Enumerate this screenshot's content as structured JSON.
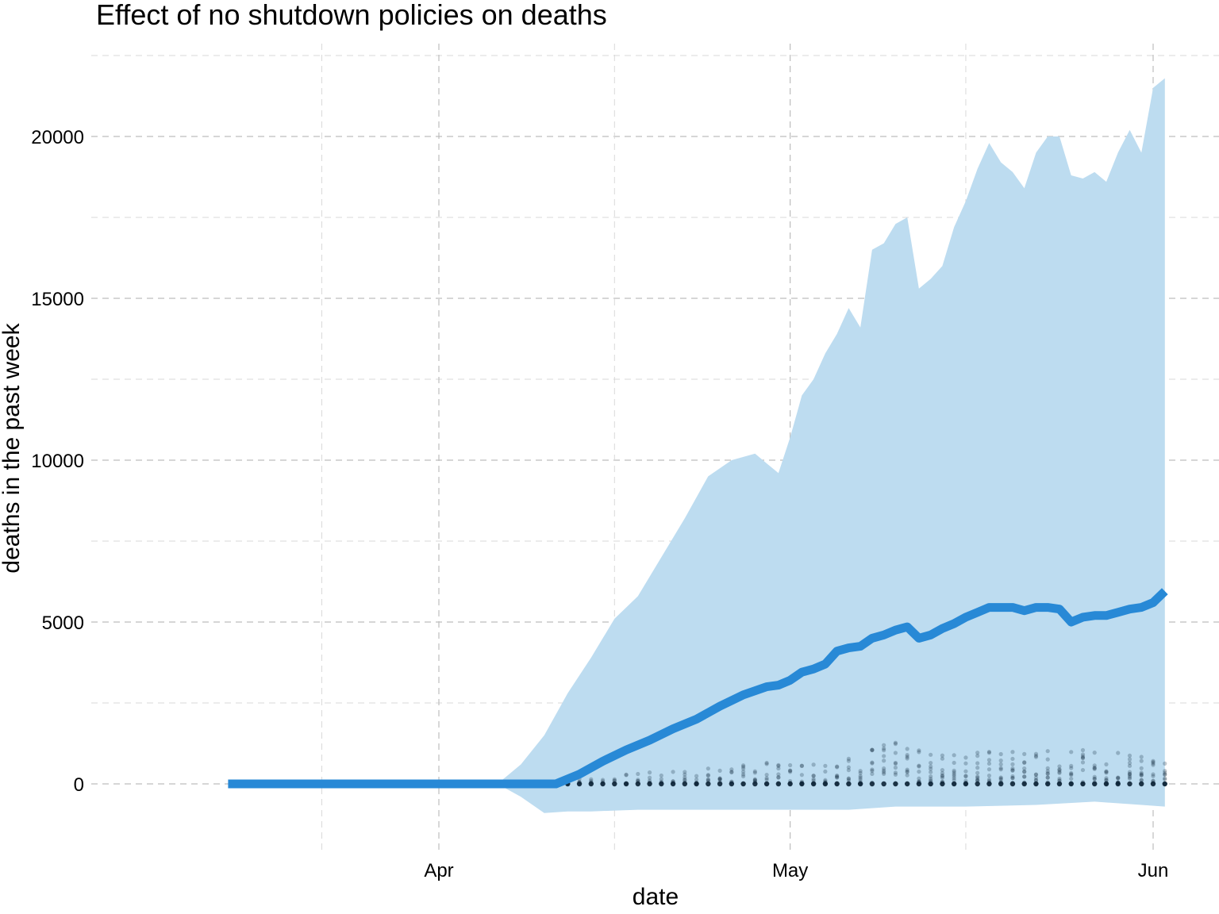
{
  "chart_data": {
    "type": "line",
    "title": "Effect of no shutdown policies on deaths",
    "xlabel": "date",
    "ylabel": "deaths in the past week",
    "x_range": [
      "2020-03-14",
      "2020-06-02"
    ],
    "x_ticks": [
      {
        "date": "2020-04-01",
        "label": "Apr"
      },
      {
        "date": "2020-05-01",
        "label": "May"
      },
      {
        "date": "2020-06-01",
        "label": "Jun"
      }
    ],
    "x_minor_ticks": [
      "2020-03-22",
      "2020-04-16",
      "2020-05-16"
    ],
    "y_ticks": [
      0,
      5000,
      10000,
      15000,
      20000
    ],
    "ylim": [
      -2000,
      22500
    ],
    "grid": true,
    "colors": {
      "line": "#2889d6",
      "band": "#bddcf0",
      "points": "#0d2436",
      "grid": "#bdbdbd"
    },
    "series": [
      {
        "name": "median",
        "type": "line",
        "dates": [
          "2020-03-14",
          "2020-04-06",
          "2020-04-11",
          "2020-04-13",
          "2020-04-15",
          "2020-04-17",
          "2020-04-19",
          "2020-04-21",
          "2020-04-23",
          "2020-04-25",
          "2020-04-27",
          "2020-04-29",
          "2020-04-30",
          "2020-05-01",
          "2020-05-02",
          "2020-05-03",
          "2020-05-04",
          "2020-05-05",
          "2020-05-06",
          "2020-05-07",
          "2020-05-08",
          "2020-05-09",
          "2020-05-10",
          "2020-05-11",
          "2020-05-12",
          "2020-05-13",
          "2020-05-14",
          "2020-05-15",
          "2020-05-16",
          "2020-05-17",
          "2020-05-18",
          "2020-05-19",
          "2020-05-20",
          "2020-05-21",
          "2020-05-22",
          "2020-05-23",
          "2020-05-24",
          "2020-05-25",
          "2020-05-26",
          "2020-05-27",
          "2020-05-28",
          "2020-05-29",
          "2020-05-30",
          "2020-05-31",
          "2020-06-01",
          "2020-06-02"
        ],
        "values": [
          0,
          0,
          0,
          300,
          700,
          1050,
          1350,
          1700,
          2000,
          2400,
          2750,
          3000,
          3050,
          3200,
          3450,
          3550,
          3700,
          4100,
          4200,
          4250,
          4500,
          4600,
          4750,
          4850,
          4500,
          4600,
          4800,
          4950,
          5150,
          5300,
          5450,
          5450,
          5450,
          5350,
          5450,
          5450,
          5400,
          5000,
          5150,
          5200,
          5200,
          5300,
          5400,
          5450,
          5600,
          5950
        ]
      },
      {
        "name": "upper bound",
        "type": "band-upper",
        "dates": [
          "2020-04-06",
          "2020-04-08",
          "2020-04-10",
          "2020-04-12",
          "2020-04-14",
          "2020-04-16",
          "2020-04-18",
          "2020-04-20",
          "2020-04-22",
          "2020-04-24",
          "2020-04-26",
          "2020-04-28",
          "2020-04-29",
          "2020-04-30",
          "2020-05-01",
          "2020-05-02",
          "2020-05-03",
          "2020-05-04",
          "2020-05-05",
          "2020-05-06",
          "2020-05-07",
          "2020-05-08",
          "2020-05-09",
          "2020-05-10",
          "2020-05-11",
          "2020-05-12",
          "2020-05-13",
          "2020-05-14",
          "2020-05-15",
          "2020-05-16",
          "2020-05-17",
          "2020-05-18",
          "2020-05-19",
          "2020-05-20",
          "2020-05-21",
          "2020-05-22",
          "2020-05-23",
          "2020-05-24",
          "2020-05-25",
          "2020-05-26",
          "2020-05-27",
          "2020-05-28",
          "2020-05-29",
          "2020-05-30",
          "2020-05-31",
          "2020-06-01",
          "2020-06-02"
        ],
        "values": [
          0,
          600,
          1500,
          2800,
          3900,
          5100,
          5800,
          7000,
          8200,
          9500,
          10000,
          10200,
          9900,
          9600,
          10700,
          12000,
          12500,
          13300,
          13900,
          14700,
          14100,
          16500,
          16700,
          17300,
          17500,
          15300,
          15600,
          16000,
          17200,
          18000,
          19000,
          19800,
          19200,
          18900,
          18400,
          19500,
          20000,
          20000,
          18800,
          18700,
          18900,
          18600,
          19500,
          20200,
          19500,
          21500,
          21800
        ]
      },
      {
        "name": "lower bound",
        "type": "band-lower",
        "dates": [
          "2020-04-06",
          "2020-04-08",
          "2020-04-10",
          "2020-04-12",
          "2020-04-14",
          "2020-04-18",
          "2020-04-22",
          "2020-04-26",
          "2020-04-30",
          "2020-05-06",
          "2020-05-10",
          "2020-05-16",
          "2020-05-22",
          "2020-05-27",
          "2020-05-31",
          "2020-06-02"
        ],
        "values": [
          0,
          -400,
          -900,
          -850,
          -850,
          -800,
          -800,
          -800,
          -800,
          -800,
          -700,
          -700,
          -650,
          -550,
          -650,
          -700
        ]
      }
    ],
    "scatter_note": "Grey translucent points near 0 represent individual simulations; highest around 1300 on 2020-05-11."
  }
}
